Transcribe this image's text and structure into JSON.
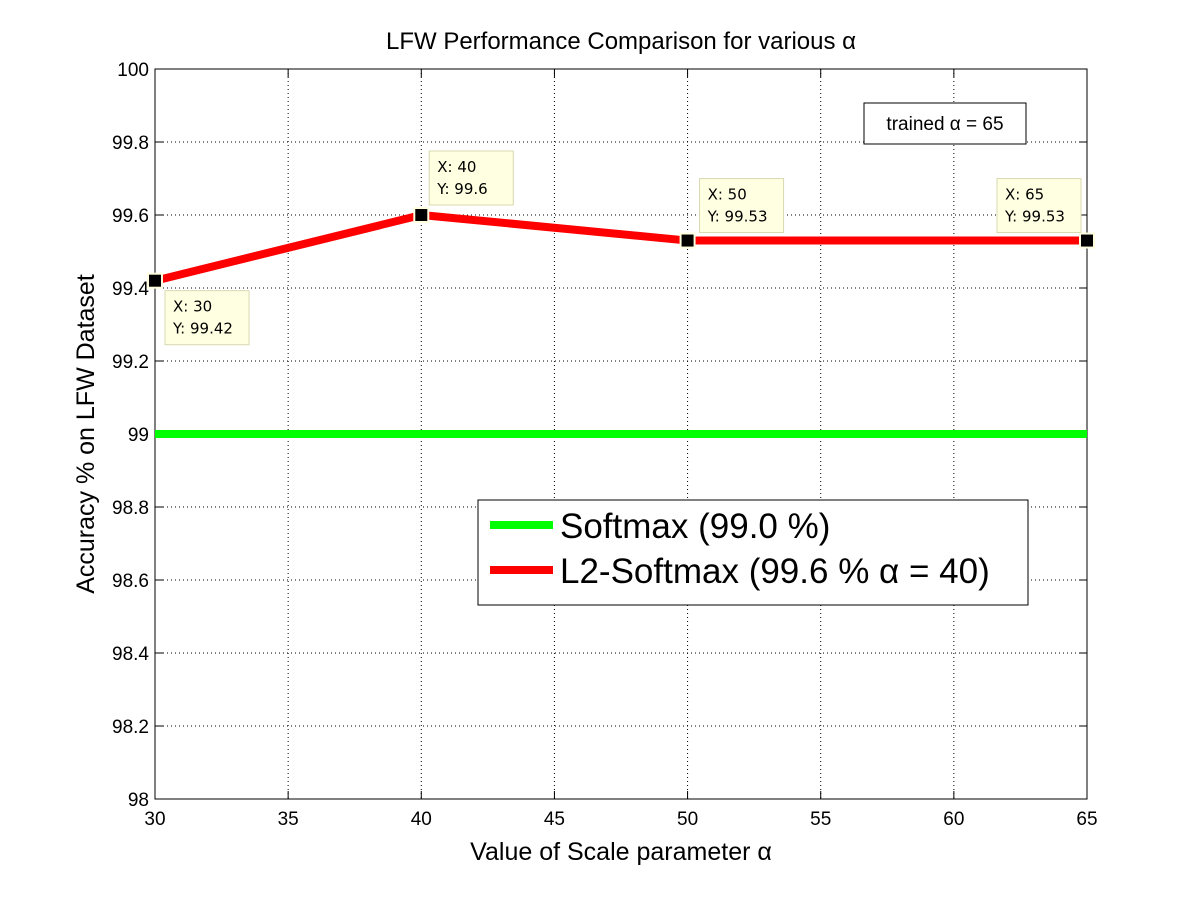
{
  "chart_data": {
    "type": "line",
    "title": "LFW Performance Comparison for various α",
    "xlabel": "Value of Scale parameter α",
    "ylabel": "Accuracy  % on LFW Dataset",
    "xlim": [
      30,
      65
    ],
    "ylim": [
      98,
      100
    ],
    "xticks": [
      30,
      35,
      40,
      45,
      50,
      55,
      60,
      65
    ],
    "yticks": [
      98,
      98.2,
      98.4,
      98.6,
      98.8,
      99,
      99.2,
      99.4,
      99.6,
      99.8,
      100
    ],
    "xtick_labels": [
      "30",
      "35",
      "40",
      "45",
      "50",
      "55",
      "60",
      "65"
    ],
    "ytick_labels": [
      "98",
      "98.2",
      "98.4",
      "98.6",
      "98.8",
      "99",
      "99.2",
      "99.4",
      "99.6",
      "99.8",
      "100"
    ],
    "grid": true,
    "legend_position": "lower-right",
    "series": [
      {
        "name": "Softmax (99.0 %)",
        "color": "#00ff00",
        "x": [
          30,
          65
        ],
        "y": [
          99.0,
          99.0
        ]
      },
      {
        "name": "L2-Softmax (99.6 % α = 40)",
        "color": "#ff0000",
        "x": [
          30,
          40,
          50,
          65
        ],
        "y": [
          99.42,
          99.6,
          99.53,
          99.53
        ]
      }
    ],
    "datatips": [
      {
        "x": 30,
        "y": 99.42,
        "label_x": "X: 30",
        "label_y": "Y: 99.42"
      },
      {
        "x": 40,
        "y": 99.6,
        "label_x": "X: 40",
        "label_y": "Y: 99.6"
      },
      {
        "x": 50,
        "y": 99.53,
        "label_x": "X: 50",
        "label_y": "Y: 99.53"
      },
      {
        "x": 65,
        "y": 99.53,
        "label_x": "X: 65",
        "label_y": "Y: 99.53"
      }
    ],
    "annotation": "trained α = 65"
  }
}
